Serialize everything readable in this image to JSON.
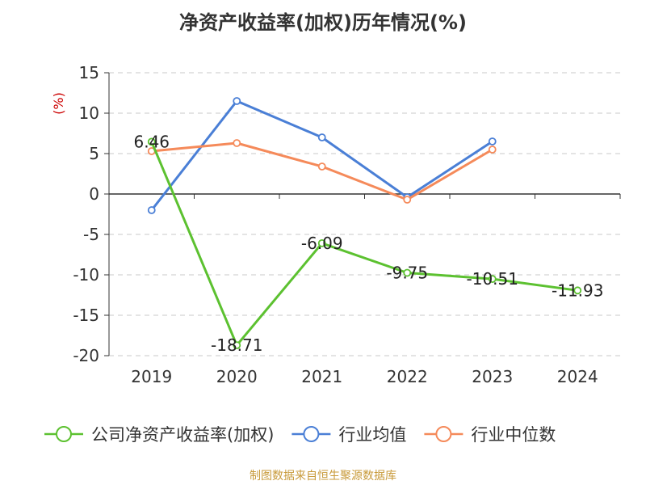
{
  "title": "净资产收益率(加权)历年情况(%)",
  "source": "制图数据来自恒生聚源数据库",
  "colors": {
    "source_text": "#c89a3a",
    "ylabel": "#cc0000",
    "grid": "#c8c8c8",
    "axis": "#333333"
  },
  "chart_data": {
    "type": "line",
    "title": "净资产收益率(加权)历年情况(%)",
    "ylabel": "(%)",
    "categories": [
      "2019",
      "2020",
      "2021",
      "2022",
      "2023",
      "2024"
    ],
    "ylim": [
      -20,
      15
    ],
    "yticks": [
      15,
      10,
      5,
      0,
      -5,
      -10,
      -15,
      -20
    ],
    "grid": true,
    "legend_position": "bottom",
    "series": [
      {
        "name": "公司净资产收益率(加权)",
        "color": "#5cc130",
        "values": [
          6.46,
          -18.71,
          -6.09,
          -9.75,
          -10.51,
          -11.93
        ],
        "labels": [
          "6.46",
          "-18.71",
          "-6.09",
          "-9.75",
          "-10.51",
          "-11.93"
        ]
      },
      {
        "name": "行业均值",
        "color": "#4a7fd6",
        "values": [
          -2.0,
          11.5,
          7.0,
          -0.4,
          6.5,
          null
        ]
      },
      {
        "name": "行业中位数",
        "color": "#f58a5a",
        "values": [
          5.3,
          6.3,
          3.4,
          -0.7,
          5.5,
          null
        ]
      }
    ]
  }
}
